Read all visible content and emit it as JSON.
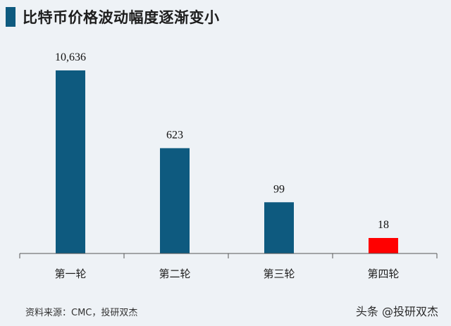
{
  "title": "比特币价格波动幅度逐渐变小",
  "source": "资料来源：CMC，投研双杰",
  "watermark": "头条 @投研双杰",
  "colors": {
    "bar": "#0e5a7f",
    "highlight": "#ff0000",
    "title_accent": "#0e5a7f",
    "axis": "#555555"
  },
  "chart_data": {
    "type": "bar",
    "categories": [
      "第一轮",
      "第二轮",
      "第三轮",
      "第四轮"
    ],
    "values": [
      10636,
      623,
      99,
      18
    ],
    "data_labels": [
      "10,636",
      "623",
      "99",
      "18"
    ],
    "highlight_index": 3,
    "scale": "non-linear (bar heights not proportional to values)",
    "title": "比特币价格波动幅度逐渐变小",
    "xlabel": "",
    "ylabel": ""
  }
}
